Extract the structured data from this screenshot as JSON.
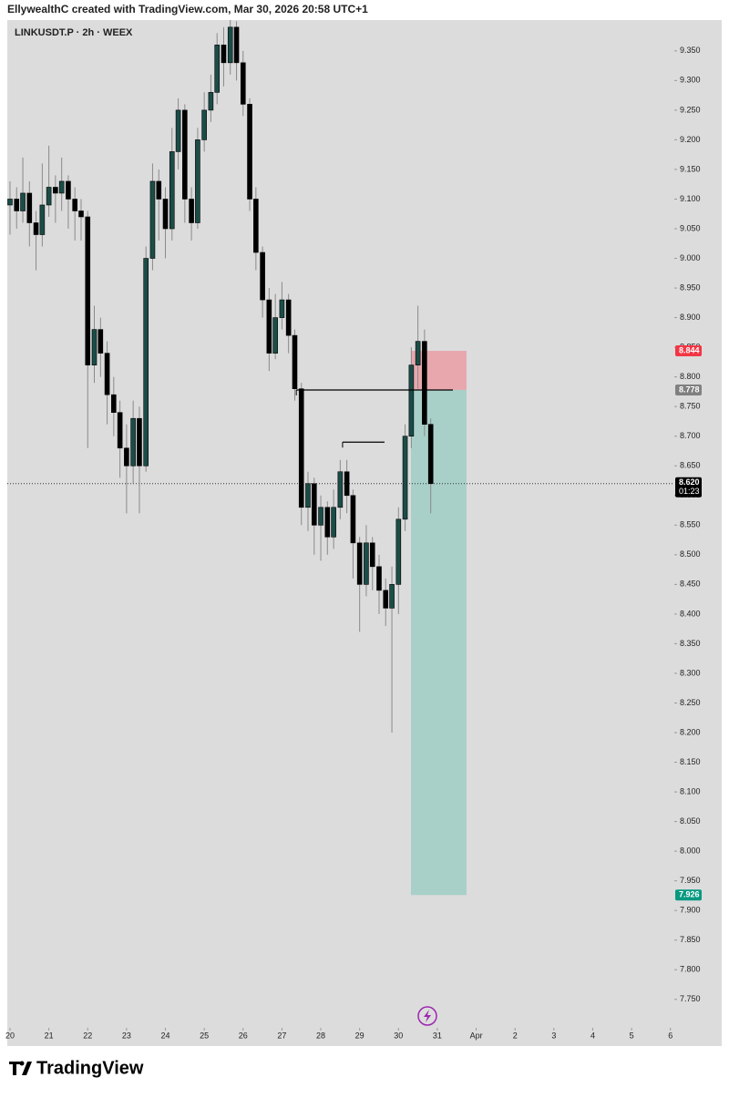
{
  "header": {
    "title": "EllywealthC created with TradingView.com, Mar 30, 2026 20:58 UTC+1"
  },
  "footer": {
    "brand": "TradingView"
  },
  "chart_data": {
    "type": "candlestick",
    "title": "LINKUSDT.P · 2h · WEEX",
    "up_color": "#1b4d47",
    "down_color": "#000000",
    "wick_color": "#8a8a8a",
    "x": [
      20,
      20.17,
      20.33,
      20.5,
      20.67,
      20.83,
      21,
      21.17,
      21.33,
      21.5,
      21.67,
      21.83,
      22,
      22.17,
      22.33,
      22.5,
      22.67,
      22.83,
      23,
      23.17,
      23.33,
      23.5,
      23.67,
      23.83,
      24,
      24.17,
      24.33,
      24.5,
      24.67,
      24.83,
      25,
      25.17,
      25.33,
      25.5,
      25.67,
      25.83,
      26,
      26.17,
      26.33,
      26.5,
      26.67,
      26.83,
      27,
      27.17,
      27.33,
      27.5,
      27.67,
      27.83,
      28,
      28.17,
      28.33,
      28.5,
      28.67,
      28.83,
      29,
      29.17,
      29.33,
      29.5,
      29.67,
      29.83,
      30,
      30.17,
      30.33,
      30.5,
      30.67,
      30.83
    ],
    "open": [
      9.09,
      9.1,
      9.08,
      9.11,
      9.06,
      9.04,
      9.09,
      9.12,
      9.11,
      9.13,
      9.1,
      9.08,
      9.07,
      8.82,
      8.88,
      8.84,
      8.77,
      8.74,
      8.68,
      8.65,
      8.73,
      8.65,
      9.0,
      9.13,
      9.1,
      9.05,
      9.18,
      9.25,
      9.1,
      9.06,
      9.2,
      9.25,
      9.28,
      9.36,
      9.33,
      9.39,
      9.33,
      9.26,
      9.1,
      9.01,
      8.93,
      8.84,
      8.9,
      8.93,
      8.87,
      8.78,
      8.58,
      8.62,
      8.55,
      8.58,
      8.53,
      8.58,
      8.64,
      8.6,
      8.52,
      8.45,
      8.52,
      8.48,
      8.44,
      8.41,
      8.45,
      8.56,
      8.7,
      8.82,
      8.86,
      8.72
    ],
    "high": [
      9.13,
      9.12,
      9.17,
      9.13,
      9.08,
      9.16,
      9.19,
      9.14,
      9.17,
      9.14,
      9.12,
      9.1,
      9.08,
      8.92,
      8.9,
      8.86,
      8.8,
      8.76,
      8.72,
      8.76,
      8.75,
      9.02,
      9.16,
      9.15,
      9.12,
      9.22,
      9.27,
      9.26,
      9.12,
      9.22,
      9.28,
      9.31,
      9.38,
      9.39,
      9.41,
      9.4,
      9.35,
      9.27,
      9.12,
      9.02,
      8.95,
      8.94,
      8.96,
      8.94,
      8.88,
      8.79,
      8.64,
      8.63,
      8.6,
      8.59,
      8.61,
      8.66,
      8.66,
      8.61,
      8.53,
      8.55,
      8.53,
      8.5,
      8.46,
      8.48,
      8.58,
      8.72,
      8.85,
      8.92,
      8.88,
      8.73
    ],
    "low": [
      9.04,
      9.05,
      9.06,
      9.02,
      8.98,
      9.02,
      9.07,
      9.06,
      9.08,
      9.05,
      9.03,
      9.03,
      8.68,
      8.79,
      8.8,
      8.72,
      8.7,
      8.63,
      8.57,
      8.62,
      8.57,
      8.64,
      8.98,
      9.03,
      9.0,
      9.03,
      9.15,
      9.06,
      9.03,
      9.05,
      9.18,
      9.23,
      9.26,
      9.29,
      9.31,
      9.3,
      9.24,
      9.08,
      8.98,
      8.9,
      8.81,
      8.83,
      8.88,
      8.84,
      8.76,
      8.55,
      8.54,
      8.5,
      8.49,
      8.5,
      8.51,
      8.56,
      8.57,
      8.46,
      8.37,
      8.43,
      8.44,
      8.4,
      8.38,
      8.2,
      8.4,
      8.54,
      8.68,
      8.78,
      8.7,
      8.57
    ],
    "close": [
      9.1,
      9.08,
      9.11,
      9.06,
      9.04,
      9.09,
      9.12,
      9.11,
      9.13,
      9.1,
      9.08,
      9.07,
      8.82,
      8.88,
      8.84,
      8.77,
      8.74,
      8.68,
      8.65,
      8.73,
      8.65,
      9.0,
      9.13,
      9.1,
      9.05,
      9.18,
      9.25,
      9.1,
      9.06,
      9.2,
      9.25,
      9.28,
      9.36,
      9.33,
      9.39,
      9.33,
      9.26,
      9.1,
      9.01,
      8.93,
      8.84,
      8.9,
      8.93,
      8.87,
      8.78,
      8.58,
      8.62,
      8.55,
      8.58,
      8.53,
      8.58,
      8.64,
      8.6,
      8.52,
      8.45,
      8.52,
      8.48,
      8.44,
      8.41,
      8.45,
      8.56,
      8.7,
      8.82,
      8.86,
      8.72,
      8.62
    ],
    "xlim": [
      19.93,
      37.1
    ],
    "ylim": [
      7.702,
      9.402
    ],
    "xticks": [
      20,
      21,
      22,
      23,
      24,
      25,
      26,
      27,
      28,
      29,
      30,
      31,
      {
        "value": 32,
        "label": "Apr"
      },
      {
        "value": 33,
        "label": "2"
      },
      {
        "value": 34,
        "label": "3"
      },
      {
        "value": 35,
        "label": "4"
      },
      {
        "value": 36,
        "label": "5"
      },
      {
        "value": 37,
        "label": "6"
      }
    ],
    "yticks": [
      {
        "value": 9.35,
        "label": "9.350"
      },
      {
        "value": 9.3,
        "label": "9.300"
      },
      {
        "value": 9.25,
        "label": "9.250"
      },
      {
        "value": 9.2,
        "label": "9.200"
      },
      {
        "value": 9.15,
        "label": "9.150"
      },
      {
        "value": 9.1,
        "label": "9.100"
      },
      {
        "value": 9.05,
        "label": "9.050"
      },
      {
        "value": 9.0,
        "label": "9.000"
      },
      {
        "value": 8.95,
        "label": "8.950"
      },
      {
        "value": 8.9,
        "label": "8.900"
      },
      {
        "value": 8.85,
        "label": "8.850"
      },
      {
        "value": 8.8,
        "label": "8.800"
      },
      {
        "value": 8.75,
        "label": "8.750"
      },
      {
        "value": 8.7,
        "label": "8.700"
      },
      {
        "value": 8.65,
        "label": "8.650"
      },
      {
        "value": 8.6,
        "label": "8.600"
      },
      {
        "value": 8.55,
        "label": "8.550"
      },
      {
        "value": 8.5,
        "label": "8.500"
      },
      {
        "value": 8.45,
        "label": "8.450"
      },
      {
        "value": 8.4,
        "label": "8.400"
      },
      {
        "value": 8.35,
        "label": "8.350"
      },
      {
        "value": 8.3,
        "label": "8.300"
      },
      {
        "value": 8.25,
        "label": "8.250"
      },
      {
        "value": 8.2,
        "label": "8.200"
      },
      {
        "value": 8.15,
        "label": "8.150"
      },
      {
        "value": 8.1,
        "label": "8.100"
      },
      {
        "value": 8.05,
        "label": "8.050"
      },
      {
        "value": 8.0,
        "label": "8.000"
      },
      {
        "value": 7.95,
        "label": "7.950"
      },
      {
        "value": 7.9,
        "label": "7.900"
      },
      {
        "value": 7.85,
        "label": "7.850"
      },
      {
        "value": 7.8,
        "label": "7.800"
      },
      {
        "value": 7.75,
        "label": "7.750"
      }
    ],
    "position": {
      "entry": 8.778,
      "stop": 8.844,
      "target": 7.926,
      "start": 30.32,
      "end": 31.75,
      "stop_color": "#e8a7ad",
      "target_color": "#a8d0c8"
    },
    "lines": [
      {
        "y": 8.778,
        "x": [
          27.37,
          31.4
        ]
      },
      {
        "y": 8.69,
        "x": [
          28.56,
          29.64
        ]
      }
    ],
    "current": {
      "value": 8.62,
      "label": "8.620",
      "countdown": "01:23"
    },
    "price_labels": [
      {
        "value": 8.844,
        "label": "8.844",
        "color": "#f23645"
      },
      {
        "value": 8.778,
        "label": "8.778",
        "color": "#808080"
      },
      {
        "value": 7.926,
        "label": "7.926",
        "color": "#089981"
      }
    ]
  }
}
